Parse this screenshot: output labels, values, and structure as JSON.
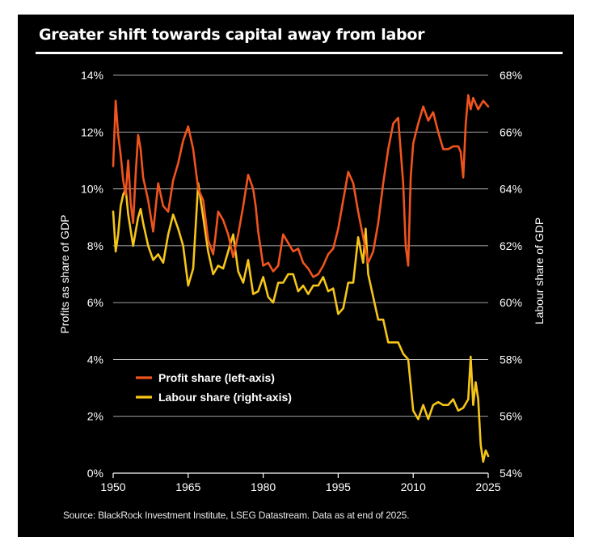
{
  "colors": {
    "background": "#000000",
    "profit": "#f0541e",
    "labour": "#f5c518",
    "text": "#ffffff",
    "grid": "#ffffff"
  },
  "title": "Greater shift towards capital away from labor",
  "source": "Source: BlackRock Investment Institute, LSEG Datastream. Data as at end of 2025.",
  "chart_data": {
    "type": "line",
    "title": "Greater shift towards capital away from labor",
    "xlabel": "",
    "ylabel_left": "Profits as share of GDP",
    "ylabel_right": "Labour share of GDP",
    "xlim": [
      1950,
      2025
    ],
    "ylim_left": [
      0,
      14
    ],
    "ylim_right": [
      54,
      68
    ],
    "x_ticks": [
      "1950",
      "1965",
      "1980",
      "1995",
      "2010",
      "2025"
    ],
    "x_tick_values": [
      1950,
      1965,
      1980,
      1995,
      2010,
      2025
    ],
    "y_ticks_left": [
      "0%",
      "2%",
      "4%",
      "6%",
      "8%",
      "10%",
      "12%",
      "14%"
    ],
    "y_tick_values_left": [
      0,
      2,
      4,
      6,
      8,
      10,
      12,
      14
    ],
    "y_ticks_right": [
      "54%",
      "56%",
      "58%",
      "60%",
      "62%",
      "64%",
      "66%",
      "68%"
    ],
    "y_tick_values_right": [
      54,
      56,
      58,
      60,
      62,
      64,
      66,
      68
    ],
    "grid": true,
    "legend_position": "bottom-left",
    "series": [
      {
        "name": "Profit share (left-axis)",
        "axis": "left",
        "color": "#f0541e",
        "x": [
          1950,
          1950.5,
          1951,
          1951.5,
          1952,
          1952.5,
          1953,
          1953.5,
          1954,
          1954.5,
          1955,
          1955.5,
          1956,
          1957,
          1958,
          1959,
          1960,
          1961,
          1962,
          1963,
          1964,
          1965,
          1965.5,
          1966,
          1967,
          1968,
          1969,
          1970,
          1970.5,
          1971,
          1972,
          1973,
          1974,
          1975,
          1976,
          1977,
          1978,
          1978.5,
          1979,
          1980,
          1981,
          1982,
          1983,
          1984,
          1985,
          1986,
          1987,
          1988,
          1989,
          1990,
          1991,
          1992,
          1993,
          1994,
          1995,
          1996,
          1997,
          1998,
          1999,
          2000,
          2001,
          2002,
          2003,
          2004,
          2005,
          2006,
          2007,
          2008,
          2008.5,
          2009,
          2009.5,
          2010,
          2011,
          2012,
          2013,
          2014,
          2015,
          2016,
          2017,
          2018,
          2019,
          2019.5,
          2020,
          2020.5,
          2021,
          2021.5,
          2022,
          2023,
          2024,
          2025
        ],
        "values": [
          10.8,
          13.1,
          11.9,
          11.2,
          10.3,
          9.8,
          11.0,
          9.5,
          8.8,
          10.5,
          11.9,
          11.4,
          10.4,
          9.6,
          8.5,
          10.2,
          9.4,
          9.2,
          10.3,
          10.9,
          11.7,
          12.2,
          11.8,
          11.4,
          10.0,
          9.6,
          8.2,
          7.7,
          8.4,
          9.2,
          8.9,
          8.4,
          7.6,
          8.4,
          9.4,
          10.5,
          10.0,
          9.4,
          8.5,
          7.3,
          7.4,
          7.1,
          7.3,
          8.4,
          8.1,
          7.8,
          7.9,
          7.4,
          7.2,
          6.9,
          7.0,
          7.3,
          7.7,
          7.9,
          8.6,
          9.6,
          10.6,
          10.2,
          9.2,
          8.3,
          7.4,
          7.8,
          8.8,
          10.2,
          11.4,
          12.3,
          12.5,
          10.2,
          8.0,
          7.3,
          10.4,
          11.6,
          12.3,
          12.9,
          12.4,
          12.7,
          12.0,
          11.4,
          11.4,
          11.5,
          11.5,
          11.3,
          10.4,
          12.3,
          13.3,
          12.8,
          13.2,
          12.8,
          13.1,
          12.9
        ]
      },
      {
        "name": "Labour share (right-axis)",
        "axis": "right",
        "color": "#f5c518",
        "x": [
          1950,
          1950.5,
          1951,
          1951.5,
          1952,
          1952.5,
          1953,
          1954,
          1955,
          1955.5,
          1956,
          1957,
          1958,
          1959,
          1960,
          1961,
          1962,
          1963,
          1964,
          1965,
          1966,
          1967,
          1968,
          1969,
          1970,
          1971,
          1972,
          1973,
          1974,
          1975,
          1976,
          1977,
          1978,
          1979,
          1980,
          1981,
          1982,
          1983,
          1984,
          1985,
          1986,
          1987,
          1988,
          1989,
          1990,
          1991,
          1992,
          1993,
          1994,
          1995,
          1996,
          1997,
          1998,
          1999,
          2000,
          2000.5,
          2001,
          2002,
          2003,
          2004,
          2005,
          2006,
          2007,
          2008,
          2009,
          2010,
          2011,
          2012,
          2013,
          2014,
          2015,
          2016,
          2017,
          2018,
          2019,
          2020,
          2021,
          2021.5,
          2022,
          2022.5,
          2023,
          2023.5,
          2024,
          2024.5,
          2025
        ],
        "values": [
          63.2,
          61.8,
          62.4,
          63.4,
          63.8,
          64.0,
          63.1,
          62.0,
          63.0,
          63.3,
          62.8,
          62.0,
          61.5,
          61.7,
          61.4,
          62.4,
          63.1,
          62.6,
          62.0,
          60.6,
          61.2,
          64.2,
          63.0,
          61.8,
          61.0,
          61.3,
          61.2,
          61.8,
          62.4,
          61.1,
          60.7,
          61.5,
          60.3,
          60.4,
          60.9,
          60.2,
          60.0,
          60.7,
          60.7,
          61.0,
          61.0,
          60.4,
          60.6,
          60.3,
          60.6,
          60.6,
          60.9,
          60.4,
          60.5,
          59.6,
          59.8,
          60.7,
          60.7,
          62.3,
          61.4,
          62.6,
          61.0,
          60.2,
          59.4,
          59.4,
          58.6,
          58.6,
          58.6,
          58.2,
          58.0,
          56.2,
          55.9,
          56.4,
          55.9,
          56.4,
          56.5,
          56.4,
          56.4,
          56.6,
          56.2,
          56.3,
          56.6,
          58.1,
          56.4,
          57.2,
          56.6,
          55.0,
          54.4,
          54.8,
          54.6
        ]
      }
    ]
  }
}
